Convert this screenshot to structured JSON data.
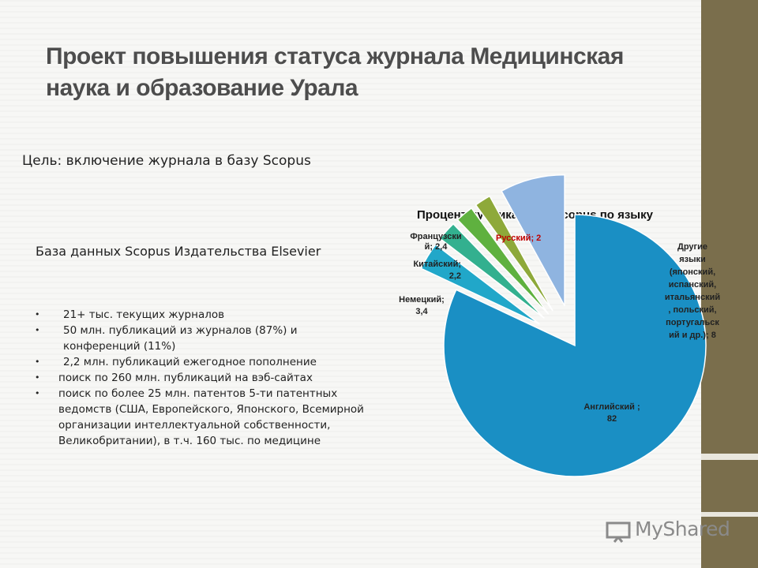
{
  "slide": {
    "title": "Проект повышения статуса журнала Медицинская наука и образование Урала",
    "goal": "Цель: включение журнала в базу Scopus",
    "db_heading": "База данных Scopus Издательства Elsevier",
    "bullets": [
      "21+ тыс. текущих журналов",
      "50 млн. публикаций из журналов (87%) и конференций (11%)",
      "2,2 млн. публикаций ежегодное пополнение",
      "поиск по 260 млн. публикаций на вэб-сайтах",
      "поиск по более 25 млн. патентов 5-ти патентных ведомств (США, Европейского, Японского, Всемирной организации интеллектуальной собственности, Великобритании), в т.ч. 160 тыс. по медицине"
    ]
  },
  "watermark": {
    "text": "MyShared"
  },
  "colors": {
    "sidebar": "#7a6e4c",
    "title": "#4d4d4d",
    "russian_label": "#c00000"
  },
  "chart_data": {
    "type": "pie",
    "title": "Процент публикаций в Scopus по языку",
    "slices": [
      {
        "label": "Английский ;",
        "value": 82,
        "value_text": "82",
        "color": "#1a8fc4",
        "exploded": false
      },
      {
        "label": "Немецкий;",
        "value": 3.4,
        "value_text": "3,4",
        "color": "#21a7c9",
        "exploded": true
      },
      {
        "label": "Французски й; 2,4",
        "value": 2.4,
        "value_text": "2,4",
        "color": "#33b08f",
        "exploded": true
      },
      {
        "label": "Китайский;",
        "value": 2.2,
        "value_text": "2,2",
        "color": "#5fb13f",
        "exploded": true
      },
      {
        "label": "Русский;",
        "value": 2,
        "value_text": "2",
        "color": "#8ea93a",
        "exploded": true
      },
      {
        "label": "Другие языки (японский, испанский, итальянский , польский, португальск ий и др.);",
        "value": 8,
        "value_text": "8",
        "color": "#8fb4e0",
        "exploded": true
      }
    ]
  }
}
